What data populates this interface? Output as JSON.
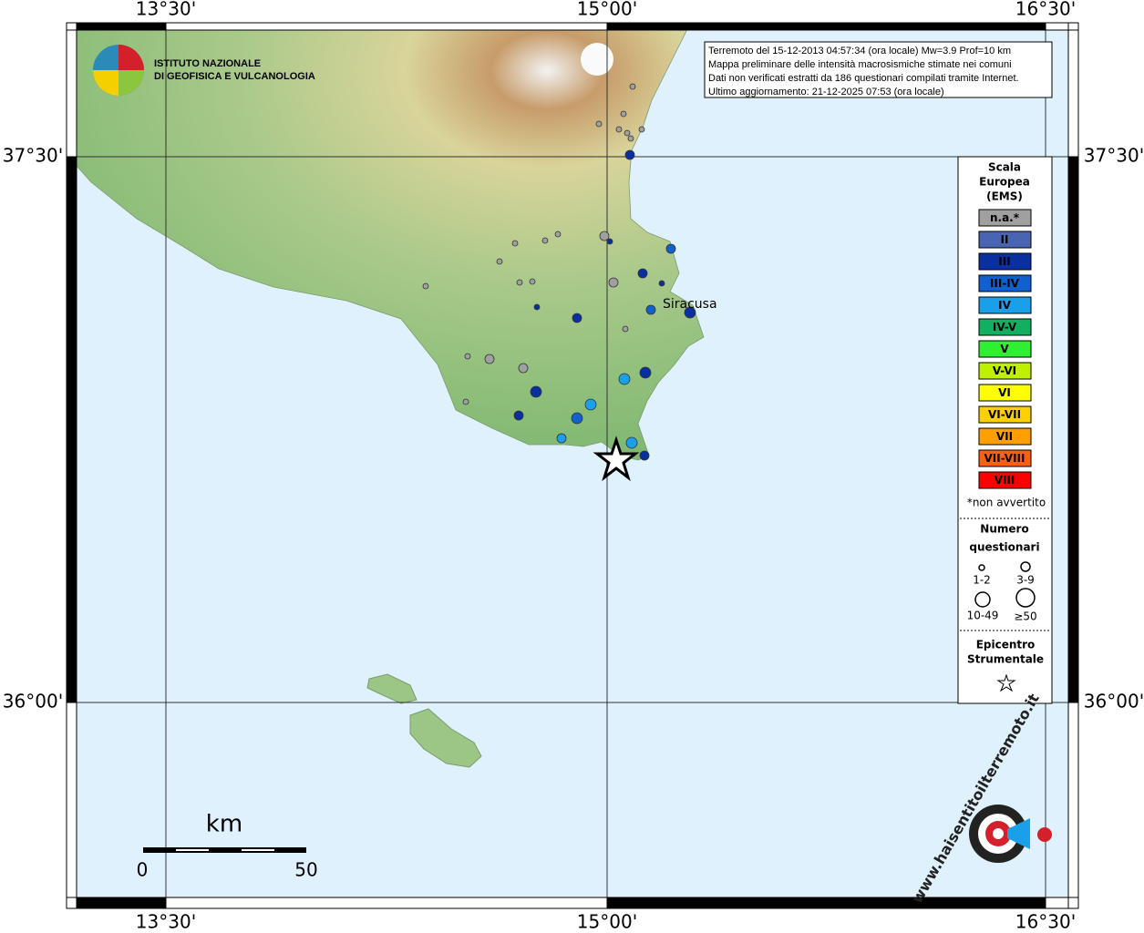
{
  "map": {
    "axis_labels": {
      "lon": [
        "13°30'",
        "15°00'",
        "16°30'"
      ],
      "lat": [
        "37°30'",
        "36°00'"
      ]
    },
    "institute": [
      "ISTITUTO NAZIONALE",
      "DI GEOFISICA E VULCANOLOGIA"
    ],
    "info": [
      "Terremoto del 15-12-2013 04:57:34 (ora locale) Mw=3.9 Prof=10 km",
      "Mappa preliminare delle intensità macrosismiche stimate nei comuni",
      "Dati non verificati estratti da 186 questionari compilati tramite Internet.",
      "Ultimo aggiornamento: 21-12-2025 07:53 (ora locale)"
    ],
    "place": "Siracusa",
    "legend": {
      "title": [
        "Scala",
        "Europea",
        "(EMS)"
      ],
      "classes": [
        {
          "label": "n.a.*",
          "color": "#a0a0a0"
        },
        {
          "label": "II",
          "color": "#4a64b4"
        },
        {
          "label": "III",
          "color": "#0a2fa0"
        },
        {
          "label": "III-IV",
          "color": "#1060d0"
        },
        {
          "label": "IV",
          "color": "#1aa0e8"
        },
        {
          "label": "IV-V",
          "color": "#10b060"
        },
        {
          "label": "V",
          "color": "#30ee30"
        },
        {
          "label": "V-VI",
          "color": "#bff000"
        },
        {
          "label": "VI",
          "color": "#ffff00"
        },
        {
          "label": "VI-VII",
          "color": "#ffd000"
        },
        {
          "label": "VII",
          "color": "#ffa000"
        },
        {
          "label": "VII-VIII",
          "color": "#ff6010"
        },
        {
          "label": "VIII",
          "color": "#ff0000"
        }
      ],
      "note": "*non avvertito",
      "size_title": [
        "Numero",
        "questionari"
      ],
      "sizes": [
        "1-2",
        "3-9",
        "10-49",
        "≥50"
      ],
      "epicenter": [
        "Epicentro",
        "Strumentale"
      ]
    },
    "scale": {
      "unit": "km",
      "ticks": [
        0,
        50
      ]
    },
    "logo": "www.haisentitoilterremoto.it"
  }
}
